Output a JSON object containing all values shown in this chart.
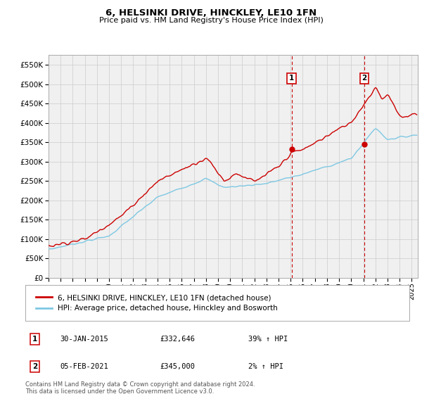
{
  "title": "6, HELSINKI DRIVE, HINCKLEY, LE10 1FN",
  "subtitle": "Price paid vs. HM Land Registry's House Price Index (HPI)",
  "yticks": [
    0,
    50000,
    100000,
    150000,
    200000,
    250000,
    300000,
    350000,
    400000,
    450000,
    500000,
    550000
  ],
  "ylim": [
    0,
    575000
  ],
  "xlim_start": 1995.0,
  "xlim_end": 2025.5,
  "sale1_date": 2015.08,
  "sale1_price": 332646,
  "sale1_label": "1",
  "sale2_date": 2021.09,
  "sale2_price": 345000,
  "sale2_label": "2",
  "hpi_color": "#7ec8e3",
  "price_color": "#cc0000",
  "vline_color": "#cc0000",
  "grid_color": "#cccccc",
  "background_color": "#ffffff",
  "plot_bg_color": "#f0f0f0",
  "legend_entry1": "6, HELSINKI DRIVE, HINCKLEY, LE10 1FN (detached house)",
  "legend_entry2": "HPI: Average price, detached house, Hinckley and Bosworth",
  "ann1_date": "30-JAN-2015",
  "ann1_price": "£332,646",
  "ann1_hpi": "39% ↑ HPI",
  "ann2_date": "05-FEB-2021",
  "ann2_price": "£345,000",
  "ann2_hpi": "2% ↑ HPI",
  "footnote": "Contains HM Land Registry data © Crown copyright and database right 2024.\nThis data is licensed under the Open Government Licence v3.0."
}
